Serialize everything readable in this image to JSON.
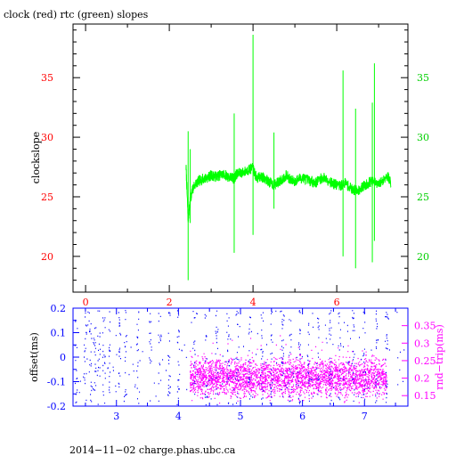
{
  "chart_data": [
    {
      "type": "line",
      "title": "clock (red) rtc (green) slopes",
      "ylabel": "clockslope",
      "xlim": [
        -0.3,
        7.7
      ],
      "ylim": [
        17,
        39.5
      ],
      "xticks": [
        0,
        2,
        4,
        6
      ],
      "yticks": [
        20,
        25,
        30,
        35
      ],
      "colors": {
        "left_ticks": "#ff0000",
        "right_ticks": "#00d000",
        "series": "#00ff00",
        "x_ticks": "#ff0000"
      },
      "series": [
        {
          "values_description_free": true,
          "x": [
            2.4,
            2.45,
            2.5,
            2.55,
            2.6,
            2.7,
            2.8,
            2.9,
            3.0,
            3.1,
            3.2,
            3.3,
            3.4,
            3.5,
            3.55,
            3.6,
            3.7,
            3.8,
            3.9,
            4.0,
            4.05,
            4.1,
            4.2,
            4.3,
            4.4,
            4.5,
            4.6,
            4.7,
            4.8,
            4.9,
            5.0,
            5.1,
            5.2,
            5.3,
            5.4,
            5.5,
            5.6,
            5.7,
            5.8,
            5.9,
            6.0,
            6.1,
            6.2,
            6.3,
            6.4,
            6.5,
            6.6,
            6.7,
            6.8,
            6.9,
            7.0,
            7.1,
            7.2,
            7.3
          ],
          "y": [
            27.5,
            23.0,
            24.8,
            25.5,
            26.0,
            26.3,
            26.5,
            26.6,
            26.8,
            26.7,
            26.8,
            26.9,
            26.7,
            26.6,
            26.5,
            26.9,
            27.0,
            27.1,
            27.3,
            27.4,
            26.8,
            26.6,
            26.7,
            26.5,
            26.2,
            26.0,
            26.2,
            26.5,
            26.8,
            26.4,
            26.3,
            26.5,
            26.6,
            26.4,
            26.3,
            26.2,
            26.5,
            26.6,
            26.4,
            26.1,
            26.0,
            25.9,
            26.2,
            25.8,
            25.6,
            25.5,
            25.8,
            26.0,
            26.3,
            26.2,
            26.0,
            26.4,
            26.8,
            26.2
          ]
        }
      ],
      "spikes": [
        {
          "x": 2.45,
          "ymin": 18.0,
          "ymax": 30.5
        },
        {
          "x": 2.5,
          "ymin": 22.8,
          "ymax": 29.0
        },
        {
          "x": 3.55,
          "ymin": 20.3,
          "ymax": 32.0
        },
        {
          "x": 4.0,
          "ymin": 21.8,
          "ymax": 38.6
        },
        {
          "x": 4.5,
          "ymin": 24.0,
          "ymax": 30.4
        },
        {
          "x": 6.15,
          "ymin": 20.0,
          "ymax": 35.6
        },
        {
          "x": 6.45,
          "ymin": 19.0,
          "ymax": 32.4
        },
        {
          "x": 6.85,
          "ymin": 19.5,
          "ymax": 32.9
        },
        {
          "x": 6.9,
          "ymin": 21.3,
          "ymax": 36.2
        }
      ]
    },
    {
      "type": "scatter",
      "ylabel": "offset(ms)",
      "y2label": "rnd−trip(ms)",
      "xlim": [
        2.3,
        7.7
      ],
      "ylim": [
        -0.2,
        0.2
      ],
      "y2lim": [
        0.12,
        0.4
      ],
      "xticks": [
        3,
        4,
        5,
        6,
        7
      ],
      "yticks": [
        "-0.2",
        "-0.1",
        "0",
        "0.1",
        "0.2"
      ],
      "y2ticks": [
        "0.15",
        "0.2",
        "0.25",
        "0.3",
        "0.35"
      ],
      "colors": {
        "offset": "#0000ff",
        "rtt": "#ff00ff",
        "axis": "#0000ff"
      },
      "offset_columns": [
        2.35,
        2.5,
        2.58,
        2.65,
        2.72,
        2.8,
        2.88,
        3.05,
        3.15,
        3.35,
        3.55,
        3.7,
        3.85,
        4.0,
        4.25,
        4.45,
        4.62,
        4.8,
        4.95,
        5.15,
        5.35,
        5.5,
        5.68,
        5.8,
        5.95,
        6.1,
        6.25,
        6.45,
        6.6,
        6.82,
        7.0,
        7.2,
        7.35
      ],
      "rtt_band": {
        "x_start": 4.18,
        "x_end": 7.35,
        "center": 0.2,
        "spread": 0.035
      }
    }
  ],
  "footer": "2014−11−02 charge.phas.ubc.ca"
}
